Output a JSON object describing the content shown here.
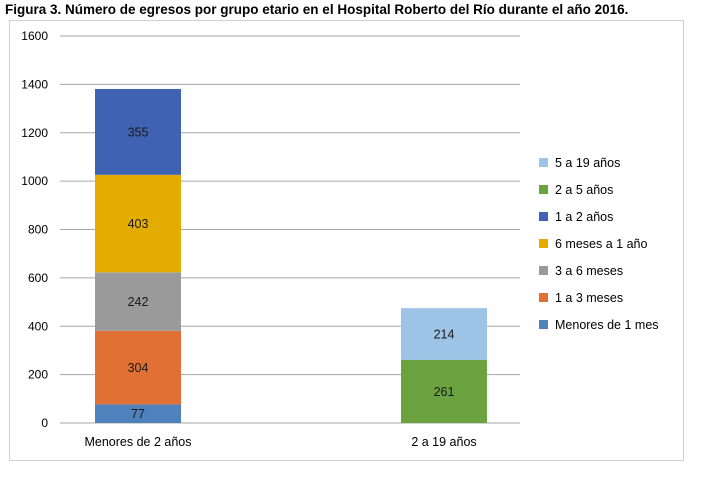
{
  "title": "Figura 3. Número de egresos por grupo etario en el Hospital Roberto del Río durante el año 2016.",
  "chart_data": {
    "type": "bar",
    "stacked": true,
    "categories": [
      "Menores de 2 años",
      "2 a 19 años"
    ],
    "ylim": [
      0,
      1600
    ],
    "yticks": [
      0,
      200,
      400,
      600,
      800,
      1000,
      1200,
      1400,
      1600
    ],
    "grid": true,
    "legend_position": "right",
    "series": [
      {
        "name": "Menores de 1 mes",
        "color": "#4f81bd",
        "values": [
          77,
          0
        ]
      },
      {
        "name": "1 a 3 meses",
        "color": "#e07033",
        "values": [
          304,
          0
        ]
      },
      {
        "name": "3 a 6 meses",
        "color": "#9a9a9a",
        "values": [
          242,
          0
        ]
      },
      {
        "name": "6 meses a 1 año",
        "color": "#e5ac00",
        "values": [
          403,
          0
        ]
      },
      {
        "name": "1 a 2 años",
        "color": "#3f63b2",
        "values": [
          355,
          0
        ]
      },
      {
        "name": "2 a 5 años",
        "color": "#6aa340",
        "values": [
          0,
          261
        ]
      },
      {
        "name": "5 a  19 años",
        "color": "#9dc3e6",
        "values": [
          0,
          214
        ]
      }
    ]
  }
}
